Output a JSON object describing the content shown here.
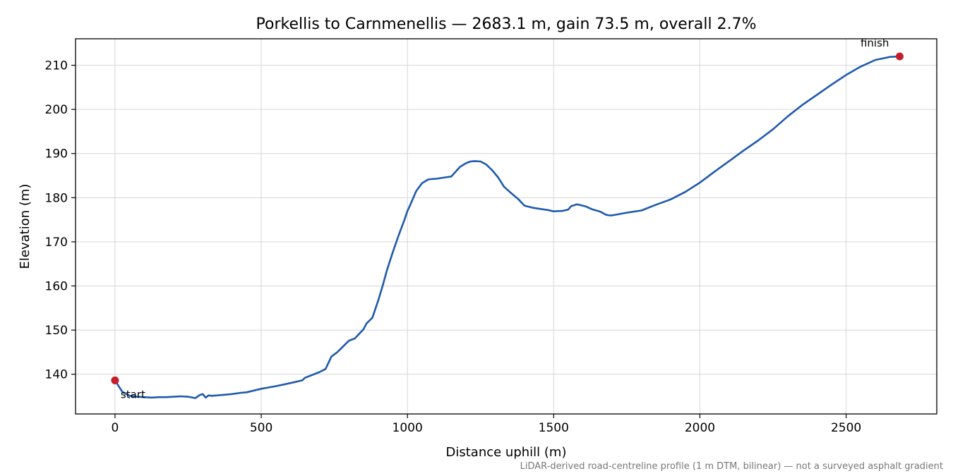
{
  "chart_data": {
    "type": "line",
    "title": "Porkellis to Carnmenellis — 2683.1 m, gain 73.5 m, overall 2.7%",
    "xlabel": "Distance uphill (m)",
    "ylabel": "Elevation (m)",
    "xlim": [
      -135,
      2810
    ],
    "ylim": [
      131,
      216
    ],
    "x_ticks": [
      0,
      500,
      1000,
      1500,
      2000,
      2500
    ],
    "x_tick_labels": [
      "0",
      "500",
      "1000",
      "1500",
      "2000",
      "2500"
    ],
    "y_ticks": [
      140,
      150,
      160,
      170,
      180,
      190,
      200,
      210
    ],
    "y_tick_labels": [
      "140",
      "150",
      "160",
      "170",
      "180",
      "190",
      "200",
      "210"
    ],
    "grid": true,
    "line_color": "#1f5aad",
    "marker_color": "#c41e2a",
    "series": [
      {
        "x": [
          0,
          25,
          50,
          75,
          100,
          125,
          150,
          175,
          200,
          225,
          250,
          275,
          290,
          300,
          310,
          320,
          330,
          350,
          400,
          430,
          450,
          500,
          550,
          600,
          640,
          650,
          700,
          720,
          740,
          760,
          800,
          820,
          850,
          860,
          880,
          900,
          915,
          930,
          950,
          970,
          990,
          1000,
          1010,
          1030,
          1050,
          1070,
          1080,
          1100,
          1130,
          1150,
          1180,
          1200,
          1215,
          1230,
          1250,
          1270,
          1290,
          1310,
          1330,
          1350,
          1380,
          1400,
          1430,
          1450,
          1480,
          1500,
          1530,
          1550,
          1560,
          1580,
          1610,
          1630,
          1660,
          1680,
          1690,
          1700,
          1750,
          1800,
          1850,
          1900,
          1950,
          2000,
          2050,
          2100,
          2150,
          2200,
          2250,
          2300,
          2350,
          2400,
          2450,
          2500,
          2550,
          2600,
          2630,
          2650,
          2683.1
        ],
        "y": [
          138.6,
          136.0,
          135.1,
          134.9,
          134.8,
          134.7,
          134.8,
          134.8,
          134.9,
          135.0,
          134.9,
          134.6,
          135.3,
          135.5,
          134.7,
          135.2,
          135.1,
          135.2,
          135.5,
          135.8,
          135.9,
          136.7,
          137.3,
          138.0,
          138.6,
          139.2,
          140.5,
          141.2,
          144.0,
          145.0,
          147.6,
          148.1,
          150.2,
          151.5,
          152.8,
          156.7,
          160.0,
          163.6,
          167.7,
          171.5,
          175.0,
          177.0,
          178.4,
          181.5,
          183.3,
          184.1,
          184.2,
          184.3,
          184.6,
          184.8,
          187.0,
          187.8,
          188.2,
          188.3,
          188.2,
          187.5,
          186.2,
          184.6,
          182.5,
          181.3,
          179.6,
          178.2,
          177.7,
          177.5,
          177.2,
          176.9,
          177.0,
          177.3,
          178.1,
          178.5,
          178.0,
          177.4,
          176.8,
          176.1,
          176.0,
          176.0,
          176.6,
          177.1,
          178.4,
          179.6,
          181.3,
          183.4,
          185.9,
          188.3,
          190.7,
          193.0,
          195.5,
          198.4,
          201.0,
          203.3,
          205.6,
          207.8,
          209.7,
          211.2,
          211.6,
          211.9,
          212.0
        ]
      }
    ],
    "annotations": [
      {
        "text": "start",
        "x": 0,
        "y": 138.6
      },
      {
        "text": "finish",
        "x": 2683.1,
        "y": 212.0
      }
    ],
    "footnote": "LiDAR-derived road-centreline profile (1 m DTM, bilinear) — not a surveyed asphalt gradient"
  }
}
